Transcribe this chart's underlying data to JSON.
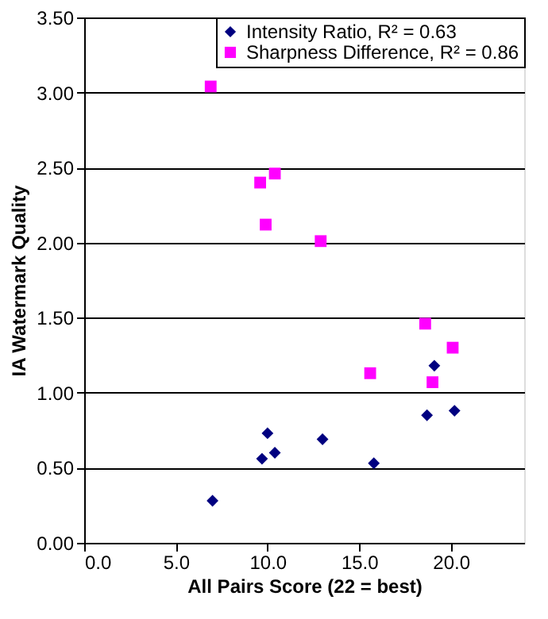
{
  "chart_data": {
    "type": "scatter",
    "xlabel": "All Pairs Score (22 = best)",
    "ylabel": "IA Watermark Quality",
    "xlim": [
      0,
      24
    ],
    "xticks": [
      {
        "value": 0,
        "label": "0.0"
      },
      {
        "value": 5,
        "label": "5.0"
      },
      {
        "value": 10,
        "label": "10.0"
      },
      {
        "value": 15,
        "label": "15.0"
      },
      {
        "value": 20,
        "label": "20.0"
      }
    ],
    "ylim": [
      0,
      3.5
    ],
    "yticks": [
      {
        "value": 0,
        "label": "0.00"
      },
      {
        "value": 0.5,
        "label": "0.50"
      },
      {
        "value": 1,
        "label": "1.00"
      },
      {
        "value": 1.5,
        "label": "1.50"
      },
      {
        "value": 2,
        "label": "2.00"
      },
      {
        "value": 2.5,
        "label": "2.50"
      },
      {
        "value": 3,
        "label": "3.00"
      },
      {
        "value": 3.5,
        "label": "3.50"
      }
    ],
    "grid": "y",
    "legend": "top right",
    "series": [
      {
        "name": "Intensity Ratio, R² = 0.63",
        "color": "#000080",
        "marker": "diamond",
        "x": [
          7.0,
          9.7,
          10.0,
          10.4,
          13.0,
          15.8,
          18.7,
          19.1,
          20.2
        ],
        "values": [
          0.28,
          0.56,
          0.73,
          0.6,
          0.69,
          0.53,
          0.85,
          1.18,
          0.88
        ]
      },
      {
        "name": "Sharpness Difference, R² = 0.86",
        "color": "#ff00ff",
        "marker": "square",
        "x": [
          6.9,
          9.6,
          10.4,
          9.9,
          12.9,
          15.6,
          18.6,
          19.0,
          20.1
        ],
        "values": [
          3.04,
          2.4,
          2.46,
          2.12,
          2.01,
          1.13,
          1.46,
          1.07,
          1.3
        ]
      }
    ]
  }
}
